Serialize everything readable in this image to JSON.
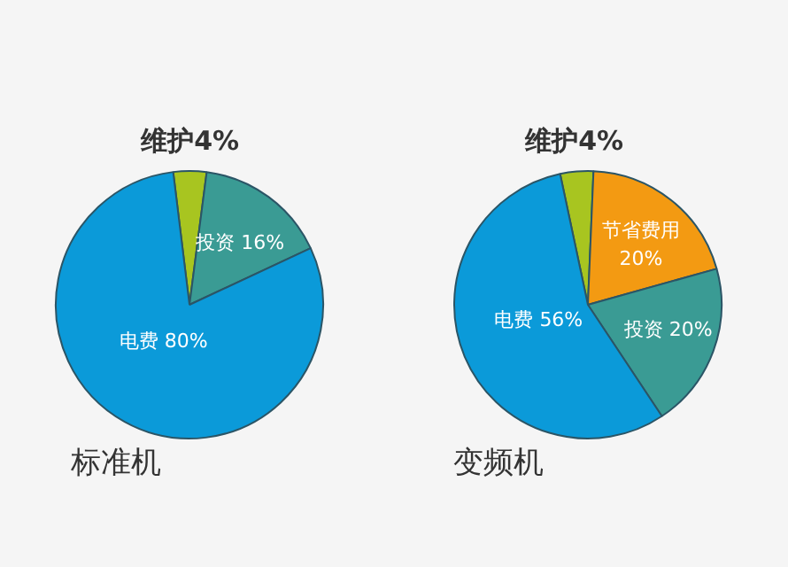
{
  "chart_data": [
    {
      "type": "pie",
      "title": "标准机",
      "categories": [
        "维护",
        "投资",
        "电费"
      ],
      "values": [
        4,
        16,
        80
      ],
      "value_labels": [
        "4%",
        "16%",
        "80%"
      ],
      "colors": [
        "#a8c520",
        "#3a9b94",
        "#0b9ad9"
      ],
      "legend": false
    },
    {
      "type": "pie",
      "title": "变频机",
      "categories": [
        "维护",
        "节省费用",
        "投资",
        "电费"
      ],
      "values": [
        4,
        20,
        20,
        56
      ],
      "value_labels": [
        "4%",
        "20%",
        "20%",
        "56%"
      ],
      "colors": [
        "#a8c520",
        "#f39a12",
        "#3a9b94",
        "#0b9ad9"
      ],
      "legend": false
    }
  ]
}
